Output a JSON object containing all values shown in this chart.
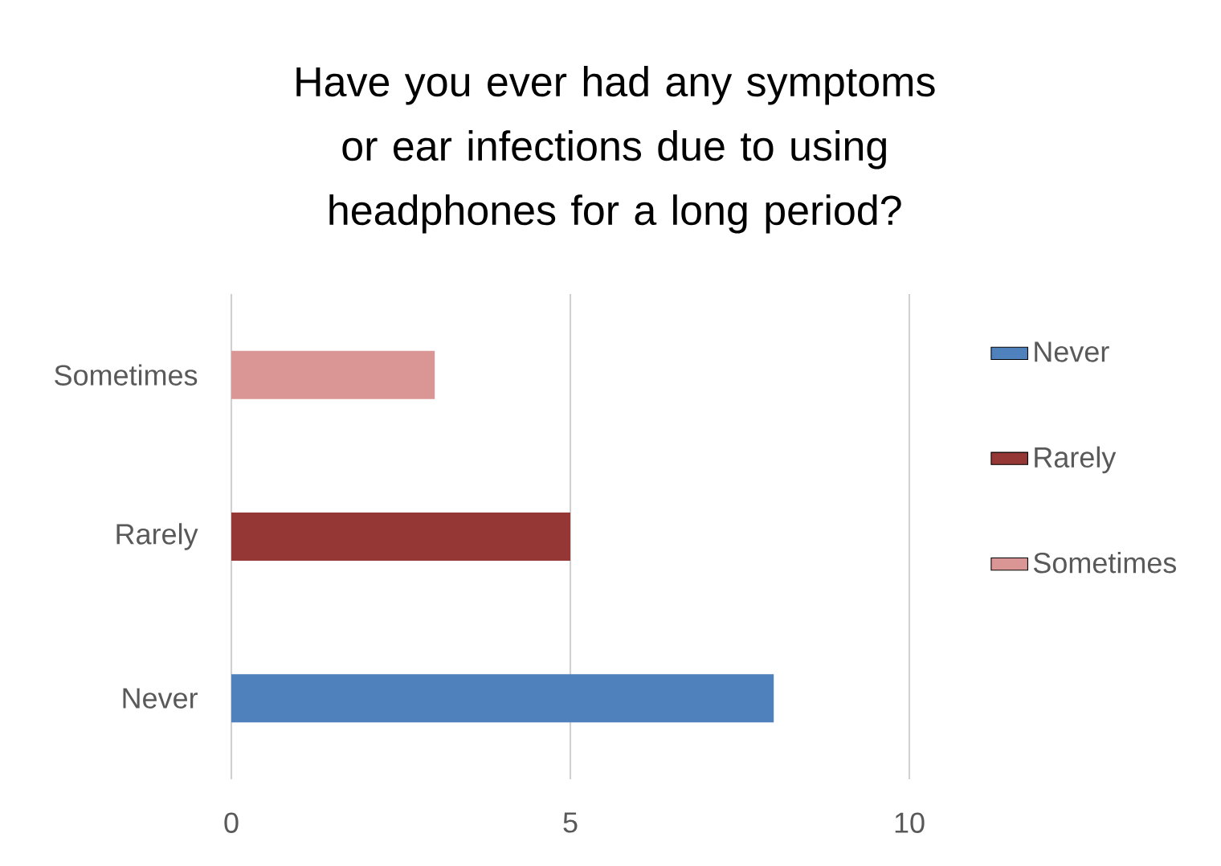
{
  "chart_data": {
    "type": "bar",
    "orientation": "horizontal",
    "title": "Have you ever had any symptoms or ear infections due to using headphones for a long period?",
    "categories": [
      "Sometimes",
      "Rarely",
      "Never"
    ],
    "series": [
      {
        "name": "Never",
        "color": "#4f81bd",
        "values": [
          null,
          null,
          8
        ]
      },
      {
        "name": "Rarely",
        "color": "#953735",
        "values": [
          null,
          5,
          null
        ]
      },
      {
        "name": "Sometimes",
        "color": "#d99694",
        "values": [
          3,
          null,
          null
        ]
      }
    ],
    "xlim": [
      0,
      10
    ],
    "xticks": [
      0,
      5,
      10
    ],
    "grid": "x",
    "legend": "right"
  }
}
